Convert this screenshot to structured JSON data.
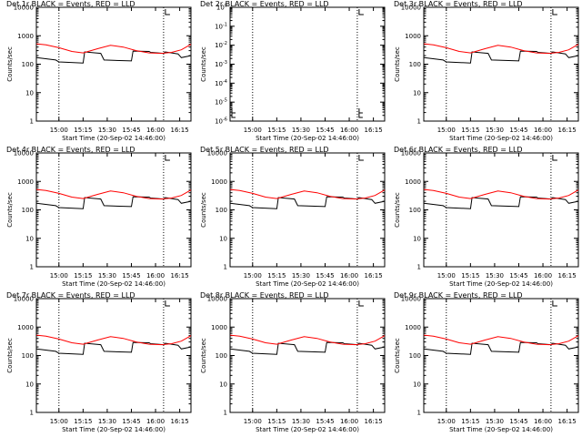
{
  "figure": {
    "xlabel": "Start Time (20-Sep-02 14:46:00)",
    "ylabel": "Counts/sec",
    "colors": {
      "events": "#000000",
      "lld": "#ff0000",
      "axes": "#000000",
      "background": "#ffffff"
    }
  },
  "chart_data": [
    {
      "type": "line",
      "title": "Det 1r BLACK = Events, RED = LLD",
      "x_ticks": [
        "15:00",
        "15:15",
        "15:30",
        "15:45",
        "16:00",
        "16:15"
      ],
      "y_scale": "log",
      "ylim": [
        1,
        10000
      ],
      "y_ticks": [
        "1",
        "10",
        "100",
        "1000",
        "10000"
      ],
      "vlines": [
        "15:00",
        "16:05"
      ],
      "series": [
        {
          "x": [
            "14:46",
            "14:58",
            "15:00",
            "15:15",
            "15:16",
            "15:26",
            "15:28",
            "15:45",
            "15:46",
            "15:56",
            "15:57",
            "16:05",
            "16:06",
            "16:14",
            "16:16",
            "16:22"
          ],
          "values": [
            170,
            140,
            120,
            110,
            270,
            240,
            140,
            130,
            290,
            280,
            260,
            240,
            270,
            230,
            170,
            200
          ]
        },
        {
          "x": [
            "14:46",
            "14:52",
            "15:00",
            "15:08",
            "15:15",
            "15:24",
            "15:32",
            "15:40",
            "15:48",
            "15:56",
            "16:04",
            "16:10",
            "16:16",
            "16:22"
          ],
          "values": [
            520,
            480,
            380,
            280,
            250,
            350,
            460,
            400,
            300,
            250,
            240,
            260,
            320,
            500
          ]
        }
      ]
    },
    {
      "type": "line",
      "title": "Det 2r BLACK = Events, RED = LLD",
      "x_ticks": [
        "15:00",
        "15:15",
        "15:30",
        "15:45",
        "16:00",
        "16:15"
      ],
      "y_scale": "log",
      "ylim": [
        1,
        1e-06
      ],
      "y_ticks": [
        "10^-6",
        "10^-5",
        "10^-4",
        "10^-3",
        "10^-2",
        "10^-1",
        "10^0"
      ],
      "vlines": [
        "15:00",
        "16:05"
      ],
      "series": []
    },
    {
      "type": "line",
      "title": "Det 3r BLACK = Events, RED = LLD",
      "x_ticks": [
        "15:00",
        "15:15",
        "15:30",
        "15:45",
        "16:00",
        "16:15"
      ],
      "y_scale": "log",
      "ylim": [
        1,
        10000
      ],
      "y_ticks": [
        "1",
        "10",
        "100",
        "1000",
        "10000"
      ],
      "vlines": [
        "15:00",
        "16:05"
      ],
      "series": [
        {
          "x": [
            "14:46",
            "14:58",
            "15:00",
            "15:15",
            "15:16",
            "15:26",
            "15:28",
            "15:45",
            "15:46",
            "15:56",
            "15:57",
            "16:05",
            "16:06",
            "16:14",
            "16:16",
            "16:22"
          ],
          "values": [
            170,
            140,
            120,
            110,
            270,
            240,
            140,
            130,
            290,
            280,
            260,
            240,
            270,
            230,
            170,
            200
          ]
        },
        {
          "x": [
            "14:46",
            "14:52",
            "15:00",
            "15:08",
            "15:15",
            "15:24",
            "15:32",
            "15:40",
            "15:48",
            "15:56",
            "16:04",
            "16:10",
            "16:16",
            "16:22"
          ],
          "values": [
            520,
            480,
            380,
            280,
            250,
            350,
            460,
            400,
            300,
            250,
            240,
            260,
            320,
            500
          ]
        }
      ]
    },
    {
      "type": "line",
      "title": "Det 4r BLACK = Events, RED = LLD",
      "x_ticks": [
        "15:00",
        "15:15",
        "15:30",
        "15:45",
        "16:00",
        "16:15"
      ],
      "y_scale": "log",
      "ylim": [
        1,
        10000
      ],
      "y_ticks": [
        "1",
        "10",
        "100",
        "1000",
        "10000"
      ],
      "vlines": [
        "15:00",
        "16:05"
      ],
      "series": [
        {
          "x": [
            "14:46",
            "14:58",
            "15:00",
            "15:15",
            "15:16",
            "15:26",
            "15:28",
            "15:45",
            "15:46",
            "15:56",
            "15:57",
            "16:05",
            "16:06",
            "16:14",
            "16:16",
            "16:22"
          ],
          "values": [
            170,
            140,
            120,
            110,
            270,
            240,
            140,
            130,
            290,
            280,
            260,
            240,
            270,
            230,
            170,
            200
          ]
        },
        {
          "x": [
            "14:46",
            "14:52",
            "15:00",
            "15:08",
            "15:15",
            "15:24",
            "15:32",
            "15:40",
            "15:48",
            "15:56",
            "16:04",
            "16:10",
            "16:16",
            "16:22"
          ],
          "values": [
            520,
            480,
            380,
            280,
            250,
            350,
            460,
            400,
            300,
            250,
            240,
            260,
            320,
            500
          ]
        }
      ]
    },
    {
      "type": "line",
      "title": "Det 5r BLACK = Events, RED = LLD",
      "x_ticks": [
        "15:00",
        "15:15",
        "15:30",
        "15:45",
        "16:00",
        "16:15"
      ],
      "y_scale": "log",
      "ylim": [
        1,
        10000
      ],
      "y_ticks": [
        "1",
        "10",
        "100",
        "1000",
        "10000"
      ],
      "vlines": [
        "15:00",
        "16:05"
      ],
      "series": [
        {
          "x": [
            "14:46",
            "14:58",
            "15:00",
            "15:15",
            "15:16",
            "15:26",
            "15:28",
            "15:45",
            "15:46",
            "15:56",
            "15:57",
            "16:05",
            "16:06",
            "16:14",
            "16:16",
            "16:22"
          ],
          "values": [
            170,
            140,
            120,
            110,
            270,
            240,
            140,
            130,
            290,
            280,
            260,
            240,
            270,
            230,
            170,
            200
          ]
        },
        {
          "x": [
            "14:46",
            "14:52",
            "15:00",
            "15:08",
            "15:15",
            "15:24",
            "15:32",
            "15:40",
            "15:48",
            "15:56",
            "16:04",
            "16:10",
            "16:16",
            "16:22"
          ],
          "values": [
            520,
            480,
            380,
            280,
            250,
            350,
            460,
            400,
            300,
            250,
            240,
            260,
            320,
            500
          ]
        }
      ]
    },
    {
      "type": "line",
      "title": "Det 6r BLACK = Events, RED = LLD",
      "x_ticks": [
        "15:00",
        "15:15",
        "15:30",
        "15:45",
        "16:00",
        "16:15"
      ],
      "y_scale": "log",
      "ylim": [
        1,
        10000
      ],
      "y_ticks": [
        "1",
        "10",
        "100",
        "1000",
        "10000"
      ],
      "vlines": [
        "15:00",
        "16:05"
      ],
      "series": [
        {
          "x": [
            "14:46",
            "14:58",
            "15:00",
            "15:15",
            "15:16",
            "15:26",
            "15:28",
            "15:45",
            "15:46",
            "15:56",
            "15:57",
            "16:05",
            "16:06",
            "16:14",
            "16:16",
            "16:22"
          ],
          "values": [
            170,
            140,
            120,
            110,
            270,
            240,
            140,
            130,
            290,
            280,
            260,
            240,
            270,
            230,
            170,
            200
          ]
        },
        {
          "x": [
            "14:46",
            "14:52",
            "15:00",
            "15:08",
            "15:15",
            "15:24",
            "15:32",
            "15:40",
            "15:48",
            "15:56",
            "16:04",
            "16:10",
            "16:16",
            "16:22"
          ],
          "values": [
            520,
            480,
            380,
            280,
            250,
            350,
            460,
            400,
            300,
            250,
            240,
            260,
            320,
            500
          ]
        }
      ]
    },
    {
      "type": "line",
      "title": "Det 7r BLACK = Events, RED = LLD",
      "x_ticks": [
        "15:00",
        "15:15",
        "15:30",
        "15:45",
        "16:00",
        "16:15"
      ],
      "y_scale": "log",
      "ylim": [
        1,
        10000
      ],
      "y_ticks": [
        "1",
        "10",
        "100",
        "1000",
        "10000"
      ],
      "vlines": [
        "15:00",
        "16:05"
      ],
      "series": [
        {
          "x": [
            "14:46",
            "14:58",
            "15:00",
            "15:15",
            "15:16",
            "15:26",
            "15:28",
            "15:45",
            "15:46",
            "15:56",
            "15:57",
            "16:05",
            "16:06",
            "16:14",
            "16:16",
            "16:22"
          ],
          "values": [
            170,
            140,
            120,
            110,
            270,
            240,
            140,
            130,
            290,
            280,
            260,
            240,
            270,
            230,
            170,
            200
          ]
        },
        {
          "x": [
            "14:46",
            "14:52",
            "15:00",
            "15:08",
            "15:15",
            "15:24",
            "15:32",
            "15:40",
            "15:48",
            "15:56",
            "16:04",
            "16:10",
            "16:16",
            "16:22"
          ],
          "values": [
            520,
            480,
            380,
            280,
            250,
            350,
            460,
            400,
            300,
            250,
            240,
            260,
            320,
            500
          ]
        }
      ]
    },
    {
      "type": "line",
      "title": "Det 8r BLACK = Events, RED = LLD",
      "x_ticks": [
        "15:00",
        "15:15",
        "15:30",
        "15:45",
        "16:00",
        "16:15"
      ],
      "y_scale": "log",
      "ylim": [
        1,
        10000
      ],
      "y_ticks": [
        "1",
        "10",
        "100",
        "1000",
        "10000"
      ],
      "vlines": [
        "15:00",
        "16:05"
      ],
      "series": [
        {
          "x": [
            "14:46",
            "14:58",
            "15:00",
            "15:15",
            "15:16",
            "15:26",
            "15:28",
            "15:45",
            "15:46",
            "15:56",
            "15:57",
            "16:05",
            "16:06",
            "16:14",
            "16:16",
            "16:22"
          ],
          "values": [
            170,
            140,
            120,
            110,
            270,
            240,
            140,
            130,
            290,
            280,
            260,
            240,
            270,
            230,
            170,
            200
          ]
        },
        {
          "x": [
            "14:46",
            "14:52",
            "15:00",
            "15:08",
            "15:15",
            "15:24",
            "15:32",
            "15:40",
            "15:48",
            "15:56",
            "16:04",
            "16:10",
            "16:16",
            "16:22"
          ],
          "values": [
            520,
            480,
            380,
            280,
            250,
            350,
            460,
            400,
            300,
            250,
            240,
            260,
            320,
            500
          ]
        }
      ]
    },
    {
      "type": "line",
      "title": "Det 9r BLACK = Events, RED = LLD",
      "x_ticks": [
        "15:00",
        "15:15",
        "15:30",
        "15:45",
        "16:00",
        "16:15"
      ],
      "y_scale": "log",
      "ylim": [
        1,
        10000
      ],
      "y_ticks": [
        "1",
        "10",
        "100",
        "1000",
        "10000"
      ],
      "vlines": [
        "15:00",
        "16:05"
      ],
      "series": [
        {
          "x": [
            "14:46",
            "14:58",
            "15:00",
            "15:15",
            "15:16",
            "15:26",
            "15:28",
            "15:45",
            "15:46",
            "15:56",
            "15:57",
            "16:05",
            "16:06",
            "16:14",
            "16:16",
            "16:22"
          ],
          "values": [
            170,
            140,
            120,
            110,
            270,
            240,
            140,
            130,
            290,
            280,
            260,
            240,
            270,
            230,
            170,
            200
          ]
        },
        {
          "x": [
            "14:46",
            "14:52",
            "15:00",
            "15:08",
            "15:15",
            "15:24",
            "15:32",
            "15:40",
            "15:48",
            "15:56",
            "16:04",
            "16:10",
            "16:16",
            "16:22"
          ],
          "values": [
            520,
            480,
            380,
            280,
            250,
            350,
            460,
            400,
            300,
            250,
            240,
            260,
            320,
            500
          ]
        }
      ]
    }
  ]
}
